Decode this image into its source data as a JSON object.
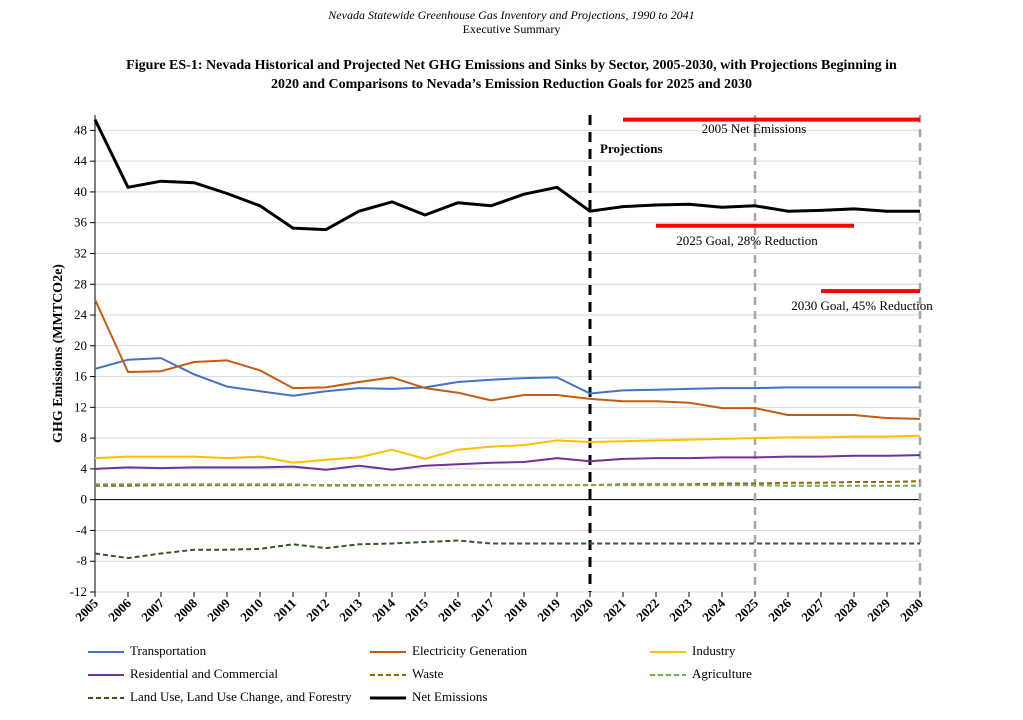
{
  "header": {
    "line1": "Nevada Statewide Greenhouse Gas Inventory and Projections, 1990 to 2041",
    "line2": "Executive Summary"
  },
  "figure": {
    "title_line1": "Figure ES-1: Nevada Historical and Projected Net GHG Emissions and Sinks by Sector, 2005-2030, with Projections Beginning in",
    "title_line2": "2020 and Comparisons to Nevada’s Emission Reduction Goals for 2025 and 2030"
  },
  "chart_data": {
    "type": "line",
    "title": "",
    "xlabel": "",
    "ylabel": "GHG Emissions (MMTCO2e)",
    "ylim": [
      -12,
      50
    ],
    "yticks": [
      -12,
      -8,
      -4,
      0,
      4,
      8,
      12,
      16,
      20,
      24,
      28,
      32,
      36,
      40,
      44,
      48
    ],
    "grid": true,
    "legend_position": "bottom",
    "x": [
      "2005",
      "2006",
      "2007",
      "2008",
      "2009",
      "2010",
      "2011",
      "2012",
      "2013",
      "2014",
      "2015",
      "2016",
      "2017",
      "2018",
      "2019",
      "2020",
      "2021",
      "2022",
      "2023",
      "2024",
      "2025",
      "2026",
      "2027",
      "2028",
      "2029",
      "2030"
    ],
    "series": [
      {
        "name": "Transportation",
        "color": "#4472C4",
        "style": "solid",
        "values": [
          17.0,
          18.2,
          18.4,
          16.3,
          14.7,
          14.1,
          13.5,
          14.1,
          14.5,
          14.4,
          14.6,
          15.3,
          15.6,
          15.8,
          15.9,
          13.8,
          14.2,
          14.3,
          14.4,
          14.5,
          14.5,
          14.6,
          14.6,
          14.6,
          14.6,
          14.6
        ]
      },
      {
        "name": "Electricity Generation",
        "color": "#C55A11",
        "style": "solid",
        "values": [
          26.0,
          16.6,
          16.7,
          17.9,
          18.1,
          16.8,
          14.5,
          14.6,
          15.3,
          15.9,
          14.5,
          13.9,
          12.9,
          13.6,
          13.6,
          13.1,
          12.8,
          12.8,
          12.6,
          11.9,
          11.9,
          11.0,
          11.0,
          11.0,
          10.6,
          10.5
        ]
      },
      {
        "name": "Industry",
        "color": "#FFC000",
        "style": "solid",
        "values": [
          5.4,
          5.6,
          5.6,
          5.6,
          5.4,
          5.6,
          4.8,
          5.2,
          5.5,
          6.5,
          5.3,
          6.5,
          6.9,
          7.1,
          7.7,
          7.5,
          7.6,
          7.7,
          7.8,
          7.9,
          8.0,
          8.1,
          8.1,
          8.2,
          8.2,
          8.3
        ]
      },
      {
        "name": "Residential and Commercial",
        "color": "#7030A0",
        "style": "solid",
        "values": [
          4.0,
          4.2,
          4.1,
          4.2,
          4.2,
          4.2,
          4.3,
          3.9,
          4.4,
          3.9,
          4.4,
          4.6,
          4.8,
          4.9,
          5.4,
          5.0,
          5.3,
          5.4,
          5.4,
          5.5,
          5.5,
          5.6,
          5.6,
          5.7,
          5.7,
          5.8
        ]
      },
      {
        "name": "Waste",
        "color": "#996600",
        "style": "dashed",
        "values": [
          1.8,
          1.8,
          1.9,
          1.9,
          1.9,
          1.9,
          1.9,
          1.9,
          1.9,
          1.9,
          1.9,
          1.9,
          1.9,
          1.9,
          1.9,
          1.9,
          2.0,
          2.0,
          2.0,
          2.1,
          2.1,
          2.2,
          2.2,
          2.3,
          2.3,
          2.4
        ]
      },
      {
        "name": "Agriculture",
        "color": "#70AD47",
        "style": "dashed",
        "values": [
          2.0,
          2.0,
          2.0,
          2.0,
          2.0,
          2.0,
          2.0,
          1.8,
          1.8,
          1.9,
          1.9,
          1.9,
          1.9,
          1.9,
          1.9,
          1.9,
          1.9,
          1.9,
          1.9,
          1.9,
          1.9,
          1.8,
          1.8,
          1.8,
          1.8,
          1.8
        ]
      },
      {
        "name": "Land Use, Land Use Change, and Forestry",
        "color": "#375623",
        "style": "dashed",
        "values": [
          -7.0,
          -7.6,
          -7.0,
          -6.5,
          -6.5,
          -6.4,
          -5.8,
          -6.3,
          -5.8,
          -5.7,
          -5.5,
          -5.3,
          -5.7,
          -5.7,
          -5.7,
          -5.7,
          -5.7,
          -5.7,
          -5.7,
          -5.7,
          -5.7,
          -5.7,
          -5.7,
          -5.7,
          -5.7,
          -5.7
        ]
      },
      {
        "name": "Net Emissions",
        "color": "#000000",
        "style": "solid-thick",
        "values": [
          49.4,
          40.6,
          41.4,
          41.2,
          39.8,
          38.2,
          35.3,
          35.1,
          37.5,
          38.7,
          37.0,
          38.6,
          38.2,
          39.7,
          40.6,
          37.5,
          38.1,
          38.3,
          38.4,
          38.0,
          38.2,
          37.5,
          37.6,
          37.8,
          37.5,
          37.5
        ]
      }
    ],
    "projection_line": {
      "x": "2020",
      "label": "Projections"
    },
    "goal_vlines": [
      "2025",
      "2030"
    ],
    "reference_lines": [
      {
        "label": "2005 Net Emissions",
        "y": 49.4,
        "x_start": "2021",
        "x_end": "2030",
        "color": "#FF0000"
      },
      {
        "label": "2025 Goal, 28% Reduction",
        "y": 35.6,
        "x_start": "2022",
        "x_end": "2028",
        "color": "#FF0000"
      },
      {
        "label": "2030 Goal, 45% Reduction",
        "y": 27.1,
        "x_start": "2027",
        "x_end": "2030",
        "color": "#FF0000"
      }
    ]
  }
}
